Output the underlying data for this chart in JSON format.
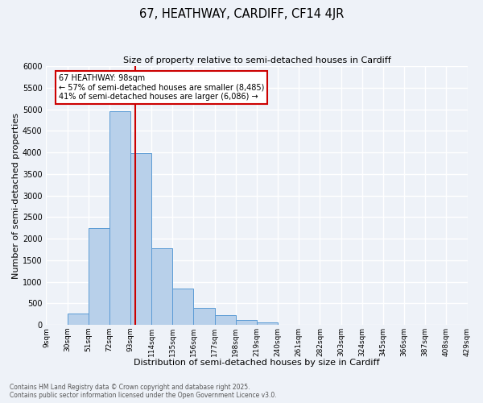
{
  "title": "67, HEATHWAY, CARDIFF, CF14 4JR",
  "subtitle": "Size of property relative to semi-detached houses in Cardiff",
  "xlabel": "Distribution of semi-detached houses by size in Cardiff",
  "ylabel": "Number of semi-detached properties",
  "bin_labels": [
    "9sqm",
    "30sqm",
    "51sqm",
    "72sqm",
    "93sqm",
    "114sqm",
    "135sqm",
    "156sqm",
    "177sqm",
    "198sqm",
    "219sqm",
    "240sqm",
    "261sqm",
    "282sqm",
    "303sqm",
    "324sqm",
    "345sqm",
    "366sqm",
    "387sqm",
    "408sqm",
    "429sqm"
  ],
  "bin_left_edges": [
    9,
    30,
    51,
    72,
    93,
    114,
    135,
    156,
    177,
    198,
    219,
    240,
    261,
    282,
    303,
    324,
    345,
    366,
    387,
    408
  ],
  "bin_values": [
    0,
    270,
    2250,
    4950,
    3980,
    1780,
    850,
    390,
    220,
    110,
    60,
    0,
    0,
    0,
    0,
    0,
    0,
    0,
    0,
    0
  ],
  "bin_width": 21,
  "bar_color": "#b8d0ea",
  "bar_edge_color": "#5b9bd5",
  "property_size": 98,
  "vline_color": "#cc0000",
  "annotation_title": "67 HEATHWAY: 98sqm",
  "annotation_line1": "← 57% of semi-detached houses are smaller (8,485)",
  "annotation_line2": "41% of semi-detached houses are larger (6,086) →",
  "annotation_box_color": "#cc0000",
  "ylim": [
    0,
    6000
  ],
  "yticks": [
    0,
    500,
    1000,
    1500,
    2000,
    2500,
    3000,
    3500,
    4000,
    4500,
    5000,
    5500,
    6000
  ],
  "xmin": 9,
  "xmax": 429,
  "background_color": "#eef2f8",
  "grid_color": "#ffffff",
  "footer_line1": "Contains HM Land Registry data © Crown copyright and database right 2025.",
  "footer_line2": "Contains public sector information licensed under the Open Government Licence v3.0."
}
